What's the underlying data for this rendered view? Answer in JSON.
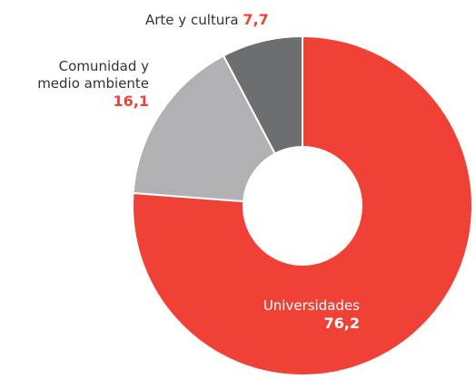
{
  "chart_data": {
    "type": "donut",
    "categories": [
      "Universidades",
      "Comunidad y medio ambiente",
      "Arte y cultura"
    ],
    "values": [
      76.2,
      16.1,
      7.7
    ],
    "value_labels": [
      "76,2",
      "16,1",
      "7,7"
    ],
    "colors": [
      "#ef4136",
      "#b1b1b3",
      "#6d6e70"
    ]
  }
}
